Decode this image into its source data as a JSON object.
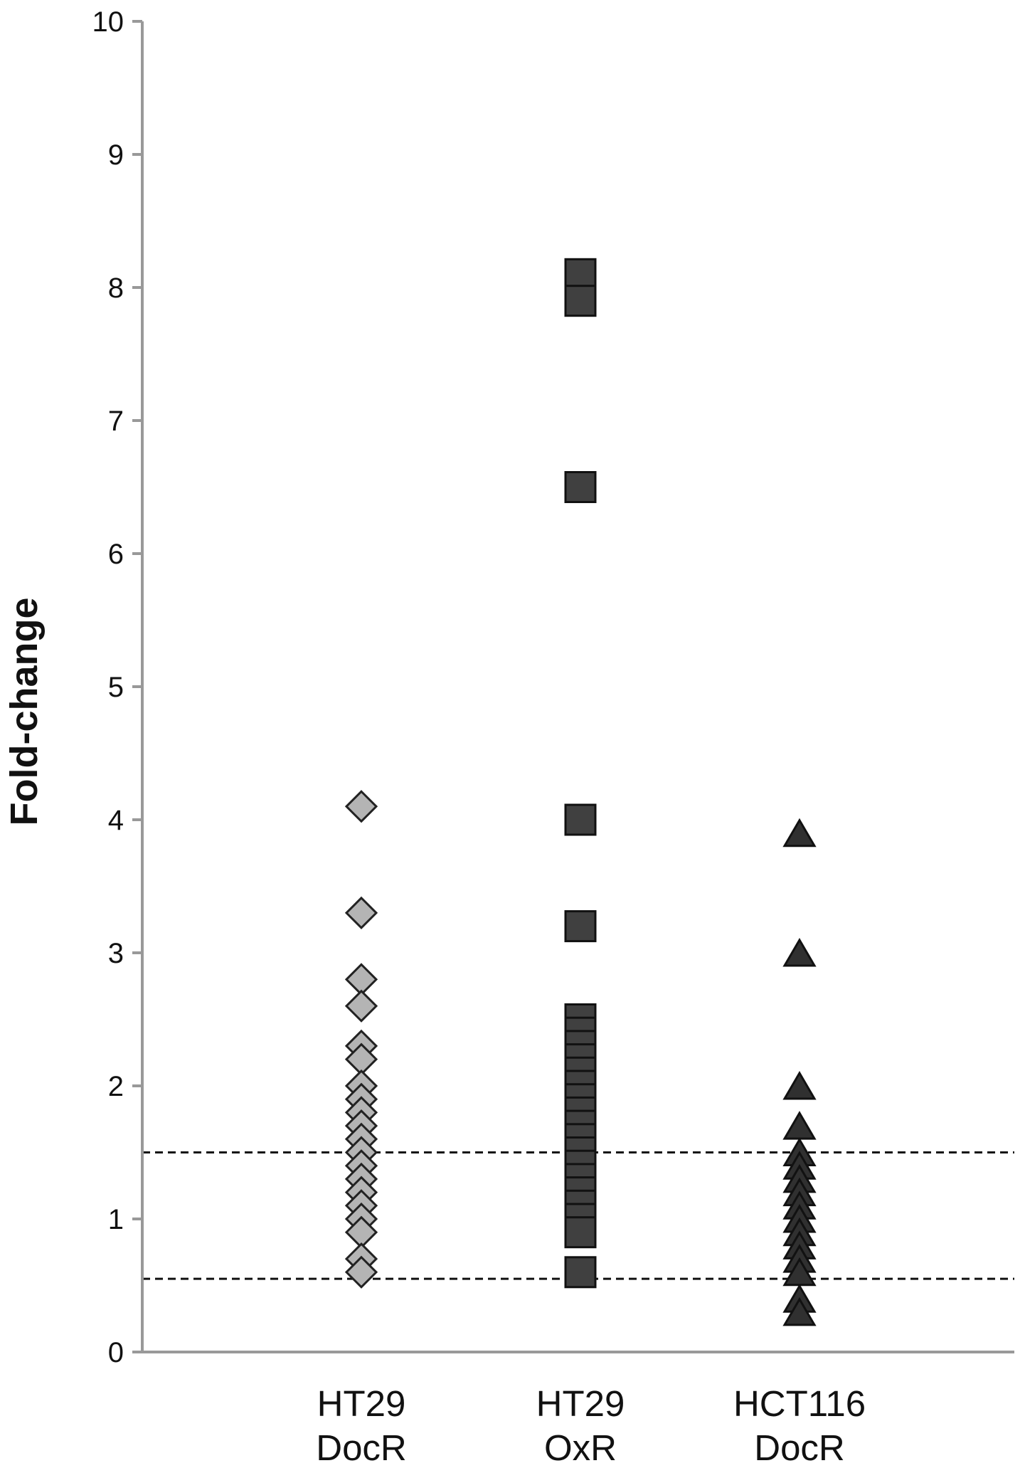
{
  "chart_data": {
    "type": "scatter",
    "title": "",
    "xlabel": "",
    "ylabel": "Fold-change",
    "ylim": [
      0,
      10
    ],
    "yticks": [
      0,
      1,
      2,
      3,
      4,
      5,
      6,
      7,
      8,
      9,
      10
    ],
    "grid": false,
    "legend": "none",
    "categories": [
      {
        "line1": "HT29",
        "line2": "DocR"
      },
      {
        "line1": "HT29",
        "line2": "OxR"
      },
      {
        "line1": "HCT116",
        "line2": "DocR"
      }
    ],
    "reference_lines": [
      1.5,
      0.55
    ],
    "series": [
      {
        "category_index": 0,
        "marker": "diamond",
        "color": "#b4b4b4",
        "values": [
          4.1,
          3.3,
          2.8,
          2.6,
          2.3,
          2.2,
          2.0,
          1.9,
          1.8,
          1.7,
          1.6,
          1.5,
          1.4,
          1.3,
          1.2,
          1.1,
          1.0,
          0.9,
          0.7,
          0.6
        ]
      },
      {
        "category_index": 1,
        "marker": "square",
        "color": "#404040",
        "values": [
          8.1,
          7.9,
          6.5,
          4.0,
          3.2,
          2.5,
          2.4,
          2.3,
          2.2,
          2.1,
          2.0,
          1.9,
          1.8,
          1.7,
          1.6,
          1.5,
          1.4,
          1.3,
          1.2,
          1.1,
          1.0,
          0.9,
          0.6
        ]
      },
      {
        "category_index": 2,
        "marker": "triangle",
        "color": "#303030",
        "values": [
          3.9,
          3.0,
          2.0,
          1.7,
          1.5,
          1.4,
          1.3,
          1.2,
          1.1,
          1.0,
          0.9,
          0.8,
          0.7,
          0.6,
          0.4,
          0.3
        ]
      }
    ]
  }
}
